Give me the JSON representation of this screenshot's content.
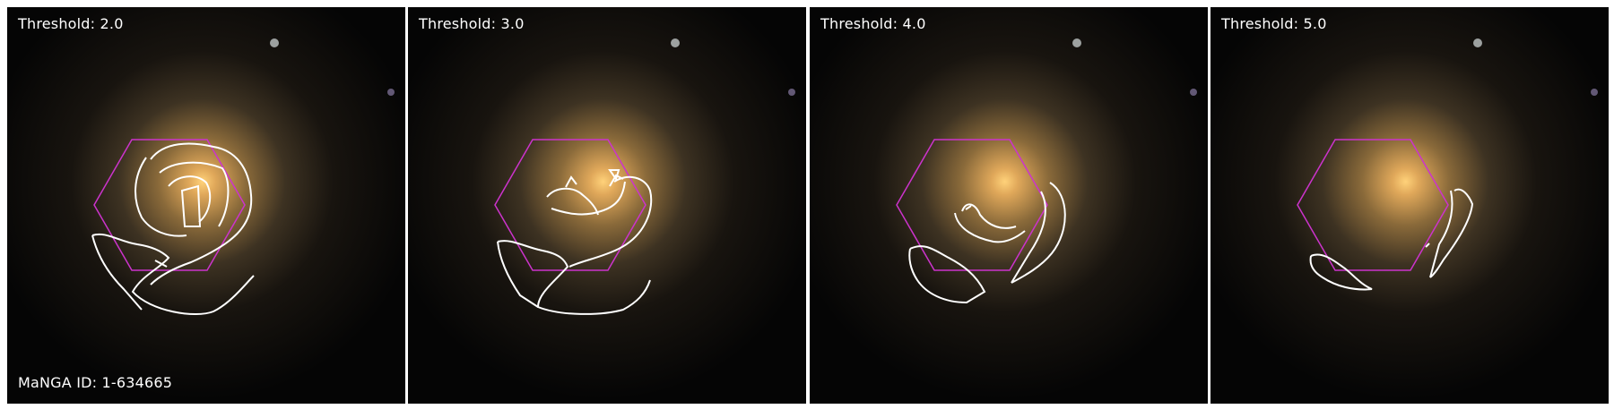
{
  "figure": {
    "manga_id_label": "MaNGA ID: 1-634665",
    "panels": [
      {
        "threshold_label": "Threshold: 2.0"
      },
      {
        "threshold_label": "Threshold: 3.0"
      },
      {
        "threshold_label": "Threshold: 4.0"
      },
      {
        "threshold_label": "Threshold: 5.0"
      }
    ],
    "colors": {
      "contour": "#ffffff",
      "ifu_hexagon": "#cc33cc",
      "galaxy_core": "#ffc050",
      "galaxy_halo": "#8a6a3a",
      "background": "#050505"
    },
    "icons": [
      "ifu-hexagon-outline",
      "contour-lines",
      "galaxy-image"
    ]
  }
}
